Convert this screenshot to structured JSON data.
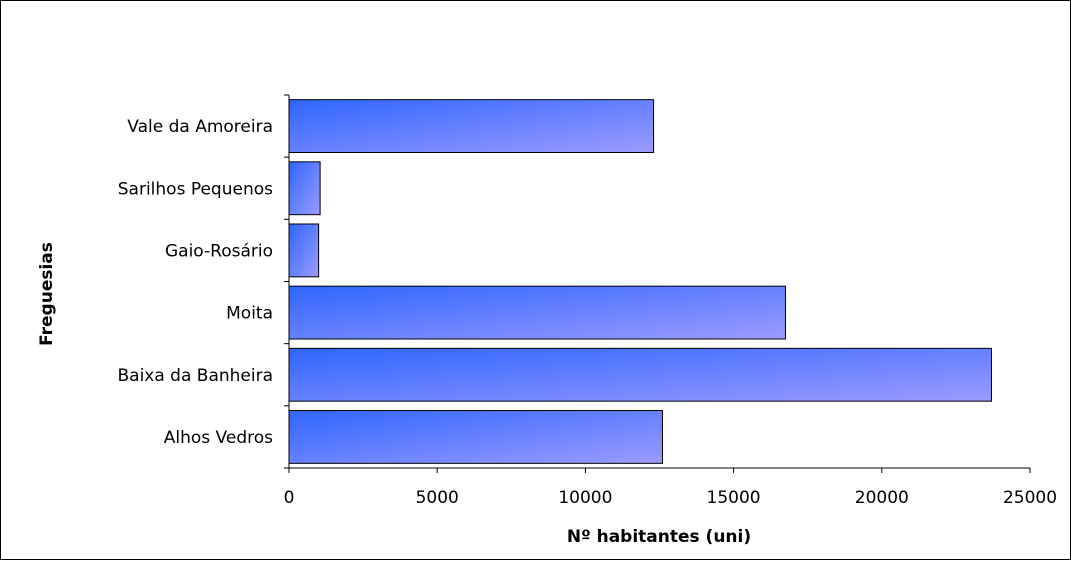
{
  "chart_data": {
    "type": "bar",
    "orientation": "horizontal",
    "title": "",
    "xlabel": "Nº habitantes (uni)",
    "ylabel": "Freguesias",
    "categories": [
      "Vale da Amoreira",
      "Sarilhos Pequenos",
      "Gaio-Rosário",
      "Moita",
      "Baixa da Banheira",
      "Alhos Vedros"
    ],
    "values": [
      12300,
      1050,
      1000,
      16750,
      23700,
      12600
    ],
    "xlim": [
      0,
      25000
    ],
    "xticks": [
      "0",
      "5000",
      "10000",
      "15000",
      "20000",
      "25000"
    ],
    "grid": false,
    "legend": "none",
    "bar_color_start": "#2f66ff",
    "bar_color_end": "#9b9bff"
  }
}
